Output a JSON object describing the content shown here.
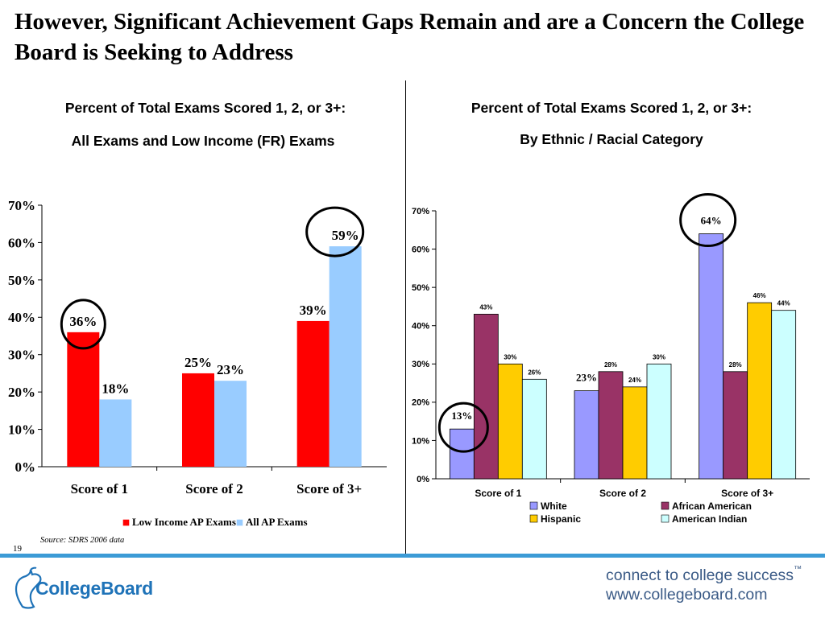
{
  "slide": {
    "title": "However, Significant Achievement Gaps Remain and are a Concern the College Board is Seeking to Address",
    "source": "Source: SDRS 2006 data",
    "page_number": "19",
    "logo_text": "CollegeBoard",
    "tagline": "connect to college success",
    "tagline_mark": "™",
    "website": "www.collegeboard.com",
    "accent_color": "#3c9bd6"
  },
  "chart_data": [
    {
      "type": "bar",
      "title": "Percent of Total Exams Scored 1, 2, or 3+:",
      "subtitle": "All Exams and Low Income (FR) Exams",
      "categories": [
        "Score of 1",
        "Score of 2",
        "Score of 3+"
      ],
      "series": [
        {
          "name": "Low Income AP Exams",
          "values": [
            36,
            25,
            39
          ],
          "labels": [
            "36%",
            "25%",
            "39%"
          ],
          "color": "#ff0000"
        },
        {
          "name": "All AP Exams",
          "values": [
            18,
            23,
            59
          ],
          "labels": [
            "18%",
            "23%",
            "59%"
          ],
          "color": "#99ccff"
        }
      ],
      "ylim": [
        0,
        70
      ],
      "yticks": [
        "0%",
        "10%",
        "20%",
        "30%",
        "40%",
        "50%",
        "60%",
        "70%"
      ],
      "legend": "bottom",
      "grid": false,
      "circled": [
        "Score of 1 / Low Income AP Exams",
        "Score of 3+ / All AP Exams"
      ]
    },
    {
      "type": "bar",
      "title": "Percent of Total Exams Scored 1, 2, or 3+:",
      "subtitle": "By Ethnic / Racial Category",
      "categories": [
        "Score of 1",
        "Score of 2",
        "Score of 3+"
      ],
      "series": [
        {
          "name": "White",
          "values": [
            13,
            23,
            64
          ],
          "labels": [
            "13%",
            "23%",
            "64%"
          ],
          "color": "#9999ff"
        },
        {
          "name": "African American",
          "values": [
            43,
            28,
            28
          ],
          "labels": [
            "43%",
            "28%",
            "28%"
          ],
          "color": "#993366"
        },
        {
          "name": "Hispanic",
          "values": [
            30,
            24,
            46
          ],
          "labels": [
            "30%",
            "24%",
            "46%"
          ],
          "color": "#ffcc00"
        },
        {
          "name": "American Indian",
          "values": [
            26,
            30,
            44
          ],
          "labels": [
            "26%",
            "30%",
            "44%"
          ],
          "color": "#ccffff"
        }
      ],
      "ylim": [
        0,
        70
      ],
      "yticks": [
        "0%",
        "10%",
        "20%",
        "30%",
        "40%",
        "50%",
        "60%",
        "70%"
      ],
      "legend": "bottom",
      "grid": false,
      "circled": [
        "Score of 1 / White",
        "Score of 3+ / White"
      ]
    }
  ]
}
